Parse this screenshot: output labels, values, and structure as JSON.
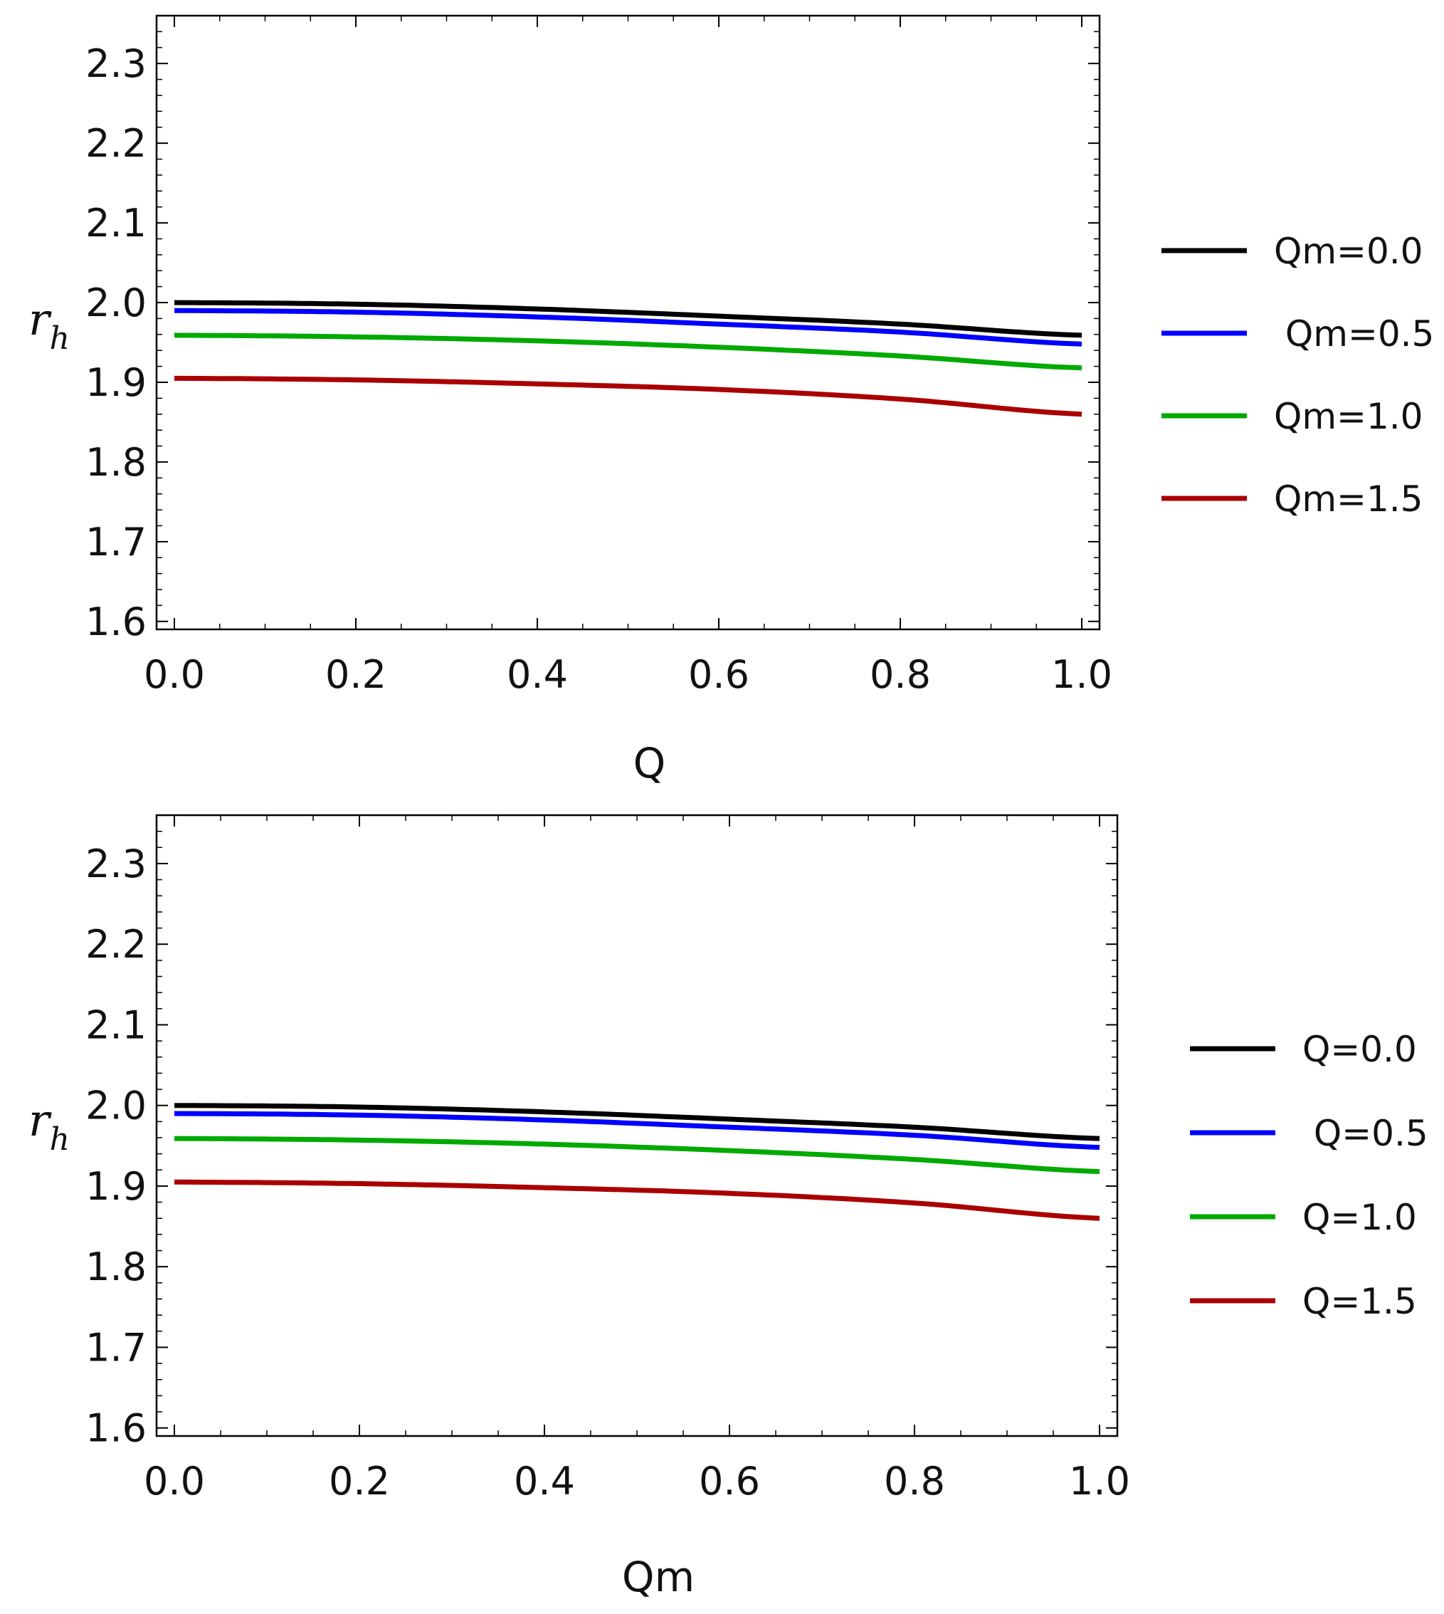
{
  "chart_data": [
    {
      "type": "line",
      "title": "",
      "xlabel": "Q",
      "ylabel": {
        "base": "r",
        "subscript": "h"
      },
      "xlim": [
        0.0,
        1.0
      ],
      "ylim": [
        1.59,
        2.36
      ],
      "xticks": [
        "0.0",
        "0.2",
        "0.4",
        "0.6",
        "0.8",
        "1.0"
      ],
      "yticks": [
        "1.6",
        "1.7",
        "1.8",
        "1.9",
        "2.0",
        "2.1",
        "2.2",
        "2.3"
      ],
      "legend_position": "right",
      "series": [
        {
          "name": "Qm=0.0",
          "color": "#000000",
          "x": [
            0.0,
            0.2,
            0.4,
            0.6,
            0.8,
            1.0
          ],
          "y": [
            2.0,
            1.998,
            1.992,
            1.983,
            1.973,
            1.959
          ]
        },
        {
          "name": " Qm=0.5",
          "color": "#0000ff",
          "x": [
            0.0,
            0.2,
            0.4,
            0.6,
            0.8,
            1.0
          ],
          "y": [
            1.99,
            1.988,
            1.982,
            1.973,
            1.963,
            1.948
          ]
        },
        {
          "name": "Qm=1.0",
          "color": "#00aa00",
          "x": [
            0.0,
            0.2,
            0.4,
            0.6,
            0.8,
            1.0
          ],
          "y": [
            1.959,
            1.957,
            1.952,
            1.944,
            1.933,
            1.918
          ]
        },
        {
          "name": "Qm=1.5",
          "color": "#aa0000",
          "x": [
            0.0,
            0.2,
            0.4,
            0.6,
            0.8,
            1.0
          ],
          "y": [
            1.905,
            1.903,
            1.898,
            1.891,
            1.879,
            1.86
          ]
        }
      ]
    },
    {
      "type": "line",
      "title": "",
      "xlabel": "Qm",
      "ylabel": {
        "base": "r",
        "subscript": "h"
      },
      "xlim": [
        0.0,
        1.0
      ],
      "ylim": [
        1.59,
        2.36
      ],
      "xticks": [
        "0.0",
        "0.2",
        "0.4",
        "0.6",
        "0.8",
        "1.0"
      ],
      "yticks": [
        "1.6",
        "1.7",
        "1.8",
        "1.9",
        "2.0",
        "2.1",
        "2.2",
        "2.3"
      ],
      "legend_position": "right",
      "series": [
        {
          "name": "Q=0.0",
          "color": "#000000",
          "x": [
            0.0,
            0.2,
            0.4,
            0.6,
            0.8,
            1.0
          ],
          "y": [
            2.0,
            1.998,
            1.992,
            1.983,
            1.973,
            1.959
          ]
        },
        {
          "name": " Q=0.5",
          "color": "#0000ff",
          "x": [
            0.0,
            0.2,
            0.4,
            0.6,
            0.8,
            1.0
          ],
          "y": [
            1.99,
            1.988,
            1.982,
            1.973,
            1.963,
            1.948
          ]
        },
        {
          "name": "Q=1.0",
          "color": "#00aa00",
          "x": [
            0.0,
            0.2,
            0.4,
            0.6,
            0.8,
            1.0
          ],
          "y": [
            1.959,
            1.957,
            1.952,
            1.944,
            1.933,
            1.918
          ]
        },
        {
          "name": "Q=1.5",
          "color": "#aa0000",
          "x": [
            0.0,
            0.2,
            0.4,
            0.6,
            0.8,
            1.0
          ],
          "y": [
            1.905,
            1.903,
            1.898,
            1.891,
            1.879,
            1.86
          ]
        }
      ]
    }
  ]
}
